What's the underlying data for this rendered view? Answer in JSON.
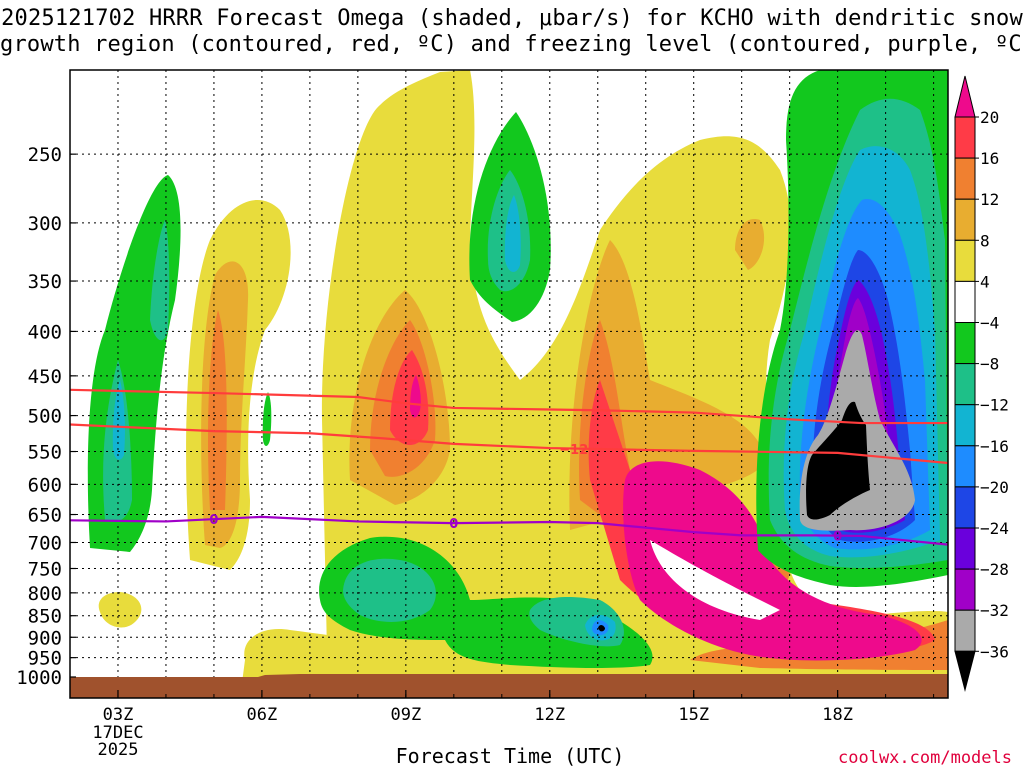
{
  "title": {
    "line1": "2025121702 HRRR Forecast Omega (shaded, μbar/s) for KCHO with dendritic snow",
    "line2": "growth region (contoured, red, ºC) and freezing level (contoured, purple, ºC)"
  },
  "xlabel": "Forecast Time (UTC)",
  "credit": "coolwx.com/models",
  "colors": {
    "ground": "#a0522d",
    "dgz_contour": "#ff3c3c",
    "freezing_contour": "#a000c8",
    "grid": "#000000"
  },
  "chart_data": {
    "type": "heatmap",
    "title": "2025121702 HRRR Forecast Omega (shaded, μbar/s) for KCHO with dendritic snow growth region (contoured, red, ºC) and freezing level (contoured, purple, ºC)",
    "xlabel": "Forecast Time (UTC)",
    "ylabel": "",
    "y_scale": "log-pressure (inverted)",
    "ylim_hpa": [
      1000,
      200
    ],
    "xlim_hours": [
      2,
      20.3
    ],
    "grid": true,
    "y_ticks": [
      250,
      300,
      350,
      400,
      450,
      500,
      550,
      600,
      650,
      700,
      750,
      800,
      850,
      900,
      950,
      1000
    ],
    "x_ticks": [
      {
        "hour": 3,
        "label": "03Z",
        "sub": [
          "17DEC",
          "2025"
        ]
      },
      {
        "hour": 6,
        "label": "06Z"
      },
      {
        "hour": 9,
        "label": "09Z"
      },
      {
        "hour": 12,
        "label": "12Z"
      },
      {
        "hour": 15,
        "label": "15Z"
      },
      {
        "hour": 18,
        "label": "18Z"
      }
    ],
    "colorbar": {
      "unit": "μbar/s",
      "labels": [
        "20",
        "16",
        "12",
        "8",
        "4",
        "−4",
        "−8",
        "−12",
        "−16",
        "−20",
        "−24",
        "−28",
        "−32",
        "−36"
      ],
      "bins": [
        {
          "range": [
            16,
            20
          ],
          "color": "#ff3b47"
        },
        {
          "range": [
            12,
            16
          ],
          "color": "#f08030"
        },
        {
          "range": [
            8,
            12
          ],
          "color": "#e8ad30"
        },
        {
          "range": [
            4,
            8
          ],
          "color": "#e8dc3c"
        },
        {
          "range": [
            -4,
            4
          ],
          "color": "#ffffff"
        },
        {
          "range": [
            -8,
            -4
          ],
          "color": "#12c81e"
        },
        {
          "range": [
            -12,
            -8
          ],
          "color": "#1ec088"
        },
        {
          "range": [
            -16,
            -12
          ],
          "color": "#12b4d2"
        },
        {
          "range": [
            -20,
            -16
          ],
          "color": "#1e8cff"
        },
        {
          "range": [
            -24,
            -20
          ],
          "color": "#1e46e6"
        },
        {
          "range": [
            -28,
            -24
          ],
          "color": "#6a00dc"
        },
        {
          "range": [
            -32,
            -28
          ],
          "color": "#a000c8"
        },
        {
          "range": [
            -36,
            -32
          ],
          "color": "#aaaaaa"
        }
      ],
      "above_color": "#ee0a8c",
      "below_color": "#000000"
    },
    "contours": [
      {
        "kind": "dendritic",
        "color": "#ff3c3c",
        "points": [
          [
            2,
            467
          ],
          [
            5,
            471
          ],
          [
            8,
            476
          ],
          [
            9,
            484
          ],
          [
            10,
            490
          ],
          [
            12,
            492
          ],
          [
            13,
            493
          ],
          [
            15,
            496
          ],
          [
            17,
            505
          ],
          [
            18.5,
            510
          ],
          [
            20.3,
            510
          ]
        ]
      },
      {
        "kind": "dendritic",
        "color": "#ff3c3c",
        "label": "−12",
        "points": [
          [
            2,
            512
          ],
          [
            5,
            521
          ],
          [
            7,
            524
          ],
          [
            8.5,
            531
          ],
          [
            10,
            539
          ],
          [
            12,
            545
          ],
          [
            15,
            549
          ],
          [
            18,
            552
          ],
          [
            20.3,
            567
          ]
        ]
      },
      {
        "kind": "freezing",
        "color": "#a000c8",
        "label": "0",
        "points": [
          [
            2,
            660
          ],
          [
            4,
            662
          ],
          [
            6,
            654
          ],
          [
            8,
            662
          ],
          [
            10,
            665
          ],
          [
            12,
            663
          ],
          [
            13,
            665
          ],
          [
            15,
            681
          ],
          [
            16,
            687
          ],
          [
            17.5,
            687
          ],
          [
            18.5,
            688
          ],
          [
            20.3,
            704
          ]
        ]
      }
    ],
    "contour_labels": [
      "−12",
      "0",
      "0",
      "0"
    ]
  }
}
